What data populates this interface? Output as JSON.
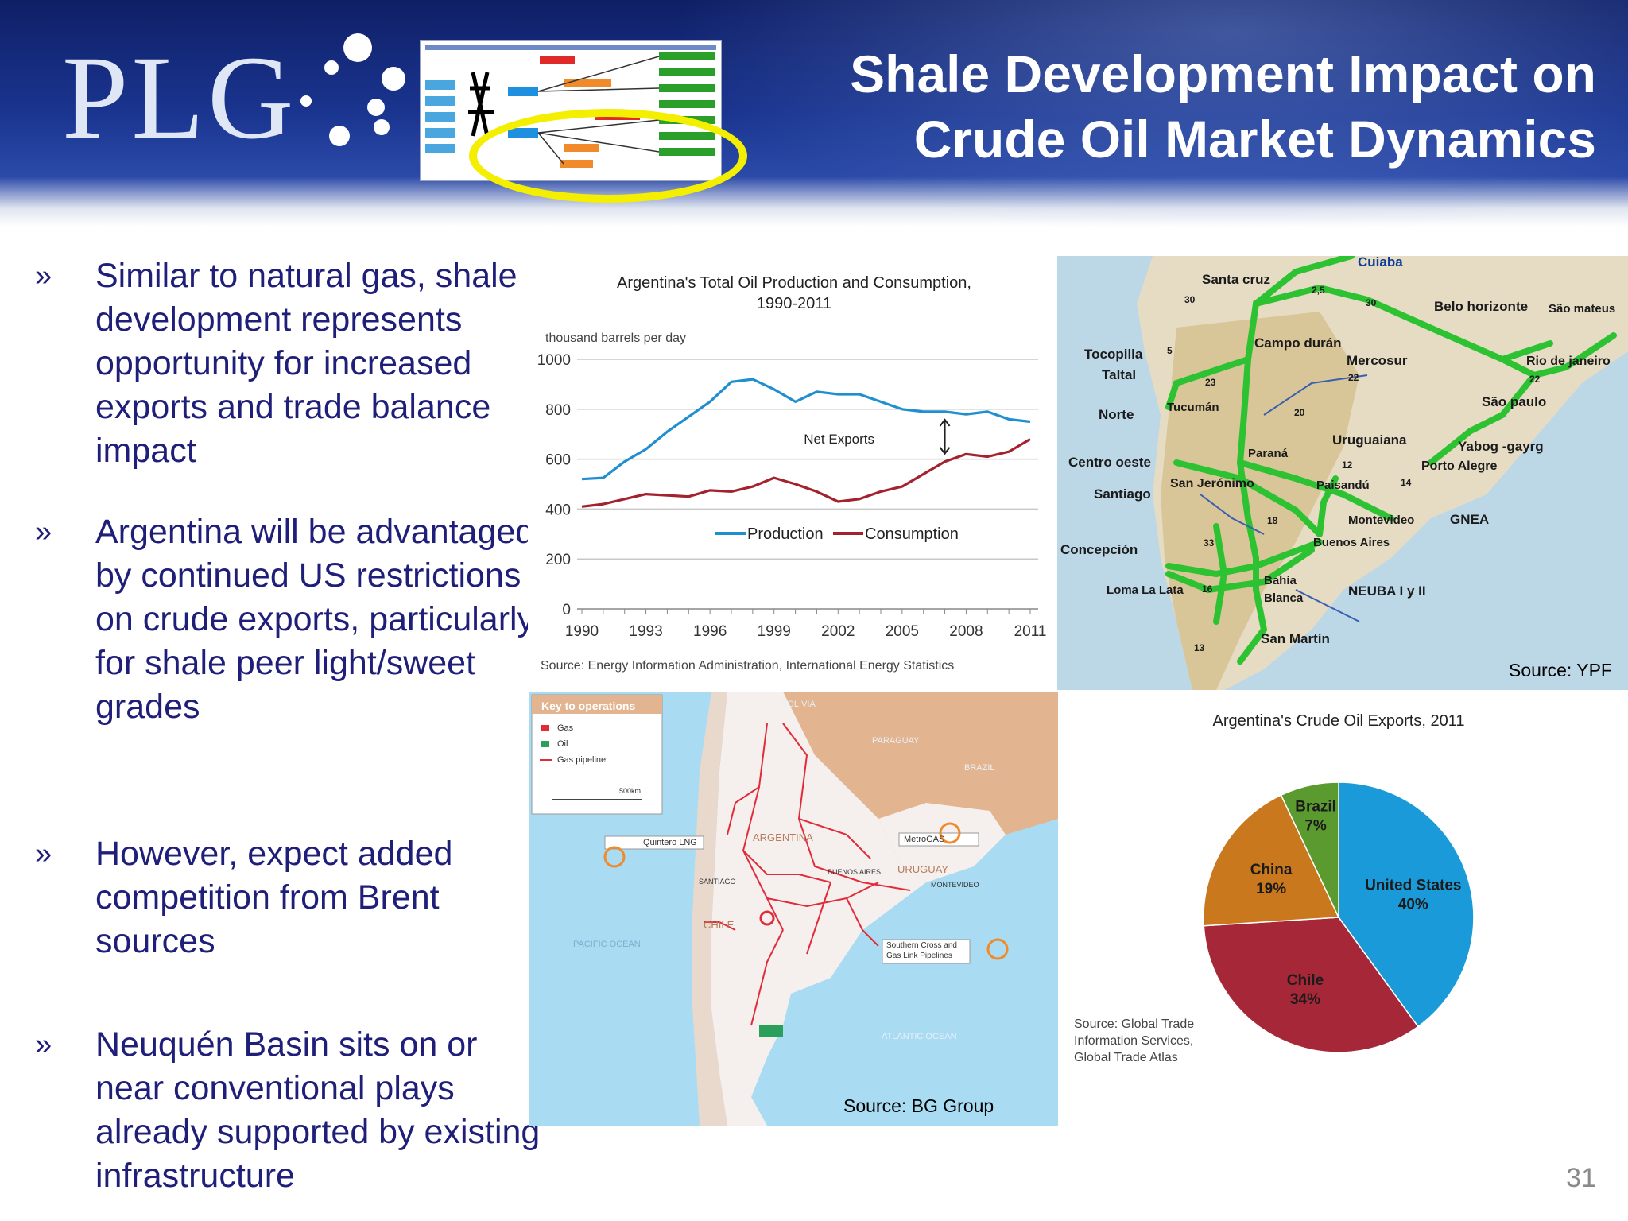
{
  "header": {
    "logo": "PLG",
    "title_line1": "Shale Development Impact on",
    "title_line2": "Crude Oil Market Dynamics"
  },
  "bullet_marker": "»",
  "bullets": [
    "Similar to natural gas, shale development represents opportunity for increased exports and trade balance impact",
    "Argentina will be advantaged by continued US restrictions on crude exports, particularly for shale peer light/sweet grades",
    "However, expect added competition from Brent sources",
    "Neuquén Basin sits on or near conventional plays already supported by existing infrastructure"
  ],
  "colors": {
    "production": "#1f8fd0",
    "consumption": "#a3222e",
    "pipeline_green": "#22c02a",
    "bullet_text": "#1f1f7a"
  },
  "chart_data": [
    {
      "type": "line",
      "title": "Argentina's Total Oil Production and Consumption, 1990-2011",
      "ylabel": "thousand barrels per day",
      "ylim": [
        0,
        1000
      ],
      "yticks": [
        0,
        200,
        400,
        600,
        800,
        1000
      ],
      "xticks": [
        1990,
        1993,
        1996,
        1999,
        2002,
        2005,
        2008,
        2011
      ],
      "x": [
        1990,
        1991,
        1992,
        1993,
        1994,
        1995,
        1996,
        1997,
        1998,
        1999,
        2000,
        2001,
        2002,
        2003,
        2004,
        2005,
        2006,
        2007,
        2008,
        2009,
        2010,
        2011
      ],
      "series": [
        {
          "name": "Production",
          "color": "#1f8fd0",
          "values": [
            520,
            525,
            590,
            640,
            710,
            770,
            830,
            910,
            920,
            880,
            830,
            870,
            860,
            860,
            830,
            800,
            790,
            790,
            780,
            790,
            760,
            750
          ]
        },
        {
          "name": "Consumption",
          "color": "#a3222e",
          "values": [
            410,
            420,
            440,
            460,
            455,
            450,
            475,
            470,
            490,
            525,
            500,
            470,
            430,
            440,
            470,
            490,
            540,
            590,
            620,
            610,
            630,
            680
          ]
        }
      ],
      "annotation": "Net Exports",
      "source": "Source: Energy Information Administration, International Energy Statistics",
      "legend": "inside-bottom"
    },
    {
      "type": "pie",
      "title": "Argentina's Crude Oil Exports, 2011",
      "slices": [
        {
          "label": "United States",
          "pct_label": "40%",
          "value": 40,
          "color": "#1a9ad8"
        },
        {
          "label": "Chile",
          "pct_label": "34%",
          "value": 34,
          "color": "#a62838"
        },
        {
          "label": "China",
          "pct_label": "19%",
          "value": 19,
          "color": "#c9781e"
        },
        {
          "label": "Brazil",
          "pct_label": "7%",
          "value": 7,
          "color": "#5b9a2e"
        }
      ],
      "source_line1": "Source: Global Trade",
      "source_line2": "Information Services,",
      "source_line3": "Global Trade Atlas"
    }
  ],
  "ypf_map": {
    "labels": {
      "cuiaba": "Cuiaba",
      "santa_cruz": "Santa cruz",
      "belo_horizonte": "Belo horizonte",
      "sao_mateus": "São mateus",
      "tocopilla": "Tocopilla",
      "taltal": "Taltal",
      "campo_duran": "Campo durán",
      "mercosur": "Mercosur",
      "rio": "Rio de janeiro",
      "sao_paulo": "São paulo",
      "norte": "Norte",
      "tucuman": "Tucumán",
      "yabog": "Yabog -gayrg",
      "porto_alegre": "Porto Alegre",
      "uruguaiana": "Uruguaiana",
      "parana": "Paraná",
      "centro_oeste": "Centro oeste",
      "san_jeronimo": "San Jerónimo",
      "paisandu": "Paisandú",
      "santiago": "Santiago",
      "montevideo": "Montevideo",
      "gnea": "GNEA",
      "buenos_aires": "Buenos Aires",
      "concepcion": "Concepción",
      "bahia1": "Bahía",
      "bahia2": "Blanca",
      "neuba": "NEUBA I y II",
      "loma": "Loma La Lata",
      "san_martin": "San Martín",
      "n30a": "30",
      "n25": "2,5",
      "n30b": "30",
      "n22a": "22",
      "n22b": "22",
      "n23": "23",
      "n20": "20",
      "n12": "12",
      "n14": "14",
      "n18": "18",
      "n33": "33",
      "n16": "16",
      "n13": "13",
      "n5": "5"
    },
    "source": "Source: YPF"
  },
  "bg_map": {
    "key_title": "Key to operations",
    "key_items": [
      "Gas",
      "Oil",
      "Gas pipeline"
    ],
    "scale": "500km",
    "labels": {
      "bolivia": "BOLIVIA",
      "paraguay": "PARAGUAY",
      "brazil": "BRAZIL",
      "argentina": "ARGENTINA",
      "metrogas": "MetroGAS",
      "uruguay": "URUGUAY",
      "quintero": "Quintero LNG",
      "santiago": "SANTIAGO",
      "buenos_aires": "BUENOS AIRES",
      "montevideo": "MONTEVIDEO",
      "chile": "CHILE",
      "pacific": "PACIFIC OCEAN",
      "southern_cross1": "Southern Cross and",
      "southern_cross2": "Gas Link Pipelines",
      "atlantic": "ATLANTIC OCEAN"
    },
    "source": "Source: BG Group"
  },
  "page_number": "31"
}
